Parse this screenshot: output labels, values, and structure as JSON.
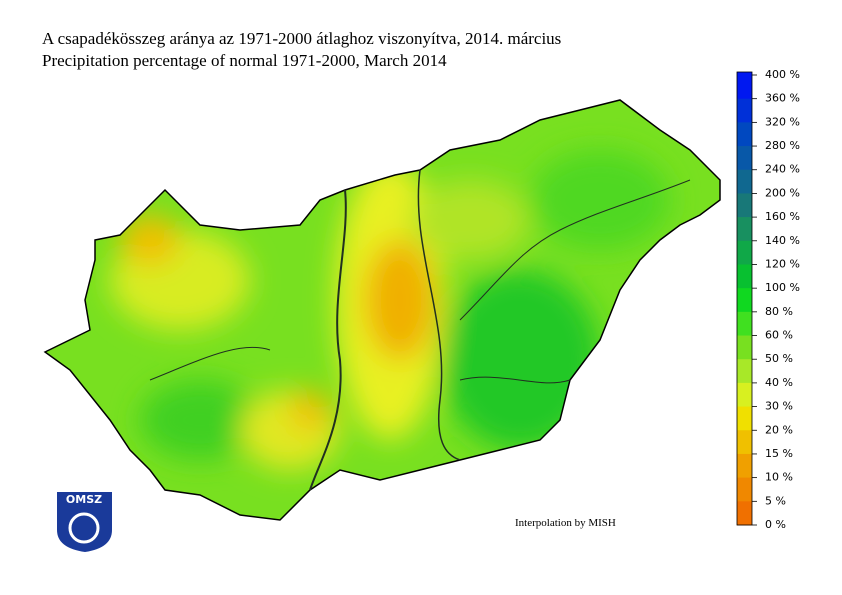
{
  "header": {
    "title": "A csapadékösszeg aránya az 1971-2000 átlaghoz viszonyítva, 2014. március",
    "subtitle": "Precipitation percentage of normal 1971-2000, March 2014"
  },
  "legend": {
    "labels": [
      "400 %",
      "360 %",
      "320 %",
      "280 %",
      "240 %",
      "200 %",
      "160 %",
      "140 %",
      "120 %",
      "100 %",
      "80 %",
      "60 %",
      "50 %",
      "40 %",
      "30 %",
      "20 %",
      "15 %",
      "10 %",
      "5 %",
      "0 %"
    ],
    "colors": [
      "#0018f0",
      "#0030d8",
      "#0048c0",
      "#0858a8",
      "#106890",
      "#187878",
      "#189060",
      "#10a848",
      "#08c030",
      "#10d820",
      "#40e020",
      "#78e020",
      "#a8e828",
      "#d8f020",
      "#f0e000",
      "#f0c000",
      "#f0a000",
      "#f08800",
      "#f07000"
    ]
  },
  "credit": "Interpolation by MISH",
  "logo": {
    "text": "OMSZ"
  }
}
